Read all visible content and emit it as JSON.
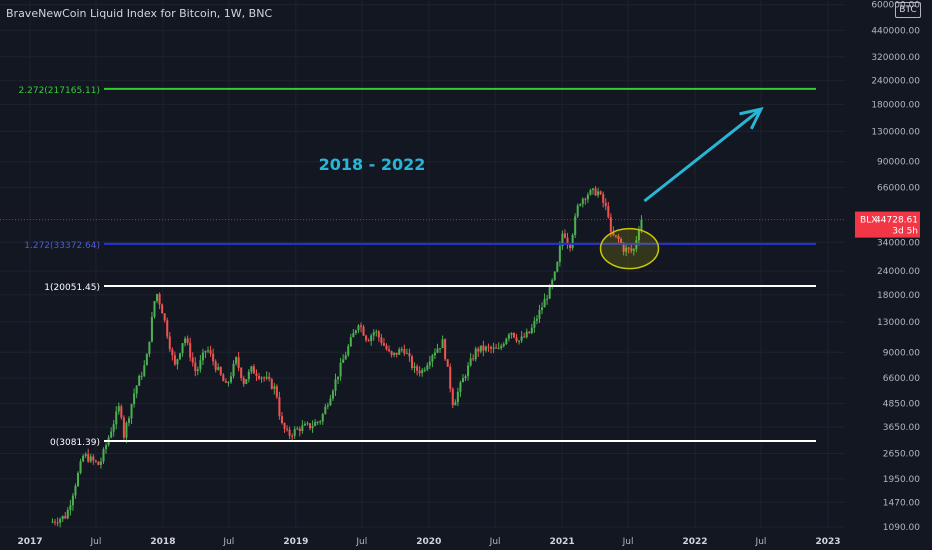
{
  "header": {
    "title": "BraveNewCoin Liquid Index for Bitcoin, 1W, BNC",
    "currency": "BTC"
  },
  "price_label": {
    "symbol": "BLX",
    "price": "44728.61",
    "countdown": "3d 5h",
    "value": 44728.61,
    "color": "#f23645"
  },
  "colors": {
    "background": "#131722",
    "up": "#26a69a",
    "candle_up": "#4caf50",
    "candle_down": "#ef5350",
    "green_level": "#33cc33",
    "blue_level": "#2433d9",
    "white_level": "#ffffff",
    "annotation": "#29b6d6",
    "ellipse": "#c8c800"
  },
  "annotations": {
    "period_text": "2018 - 2022",
    "arrow": {
      "from": [
        "2021-08-15",
        56000
      ],
      "to": [
        "2022-07-01",
        170000
      ]
    },
    "ellipse": {
      "center": [
        "2021-07-05",
        31500
      ]
    }
  },
  "chart_data": {
    "type": "line",
    "title": "BraveNewCoin Liquid Index for Bitcoin, 1W, BNC",
    "y_scale": "log",
    "ylim": [
      1060,
      600000
    ],
    "xlim": [
      "2017-01-01",
      "2023-01-31"
    ],
    "x_tick_labels": [
      "2017",
      "Jul",
      "2018",
      "Jul",
      "2019",
      "Jul",
      "2020",
      "Jul",
      "2021",
      "Jul",
      "2022",
      "Jul",
      "2023"
    ],
    "x_ticks": [
      "2017-01-01",
      "2017-07-01",
      "2018-01-01",
      "2018-07-01",
      "2019-01-01",
      "2019-07-01",
      "2020-01-01",
      "2020-07-01",
      "2021-01-01",
      "2021-07-01",
      "2022-01-01",
      "2022-07-01",
      "2023-01-01"
    ],
    "y_tick_labels": [
      "600000.00",
      "440000.00",
      "320000.00",
      "240000.00",
      "180000.00",
      "130000.00",
      "90000.00",
      "66000.00",
      "34000.00",
      "24000.00",
      "18000.00",
      "13000.00",
      "9000.00",
      "6600.00",
      "4850.00",
      "3650.00",
      "2650.00",
      "1950.00",
      "1470.00",
      "1090.00"
    ],
    "y_ticks": [
      600000,
      440000,
      320000,
      240000,
      180000,
      130000,
      90000,
      66000,
      34000,
      24000,
      18000,
      13000,
      9000,
      6600,
      4850,
      3650,
      2650,
      1950,
      1470,
      1090
    ],
    "levels": [
      {
        "label": "2.272(217165.11)",
        "value": 217165.11,
        "color": "#33cc33"
      },
      {
        "label": "1.272(33372.64)",
        "value": 33372.64,
        "color": "#2433d9"
      },
      {
        "label": "1(20051.45)",
        "value": 20051.45,
        "color": "#ffffff"
      },
      {
        "label": "0(3081.39)",
        "value": 3081.39,
        "color": "#ffffff"
      }
    ],
    "series": [
      {
        "x": [
          "2017-03-01",
          "2017-04-15",
          "2017-06-01",
          "2017-07-15",
          "2017-08-15",
          "2017-09-10",
          "2017-09-20",
          "2017-10-20",
          "2017-11-20",
          "2017-12-17",
          "2018-01-05",
          "2018-02-06",
          "2018-03-05",
          "2018-04-06",
          "2018-05-05",
          "2018-06-28",
          "2018-07-25",
          "2018-08-15",
          "2018-09-05",
          "2018-10-15",
          "2018-11-12",
          "2018-11-25",
          "2018-12-15",
          "2019-01-15",
          "2019-02-15",
          "2019-03-15",
          "2019-04-05",
          "2019-05-15",
          "2019-06-26",
          "2019-07-20",
          "2019-08-10",
          "2019-09-24",
          "2019-10-28",
          "2019-11-25",
          "2019-12-18",
          "2020-01-15",
          "2020-02-13",
          "2020-03-12",
          "2020-04-15",
          "2020-05-15",
          "2020-06-15",
          "2020-07-15",
          "2020-08-15",
          "2020-09-10",
          "2020-10-10",
          "2020-11-10",
          "2020-12-01",
          "2020-12-20",
          "2021-01-08",
          "2021-01-25",
          "2021-02-20",
          "2021-03-13",
          "2021-04-13",
          "2021-05-12",
          "2021-05-19",
          "2021-06-10",
          "2021-06-22",
          "2021-07-20",
          "2021-08-09"
        ],
        "y": [
          1150,
          1250,
          2600,
          2300,
          3500,
          4800,
          3300,
          5700,
          8000,
          19000,
          14500,
          7500,
          11000,
          7000,
          9500,
          5900,
          8200,
          6300,
          7300,
          6500,
          5700,
          3800,
          3300,
          3600,
          3700,
          4000,
          5100,
          8200,
          13000,
          10500,
          11700,
          8500,
          9500,
          7300,
          7200,
          8900,
          10200,
          4800,
          7000,
          9300,
          9400,
          9200,
          11800,
          10300,
          11500,
          15500,
          19000,
          24000,
          40000,
          32000,
          55000,
          61000,
          63000,
          48000,
          37000,
          35000,
          31500,
          30500,
          45000
        ]
      }
    ]
  }
}
